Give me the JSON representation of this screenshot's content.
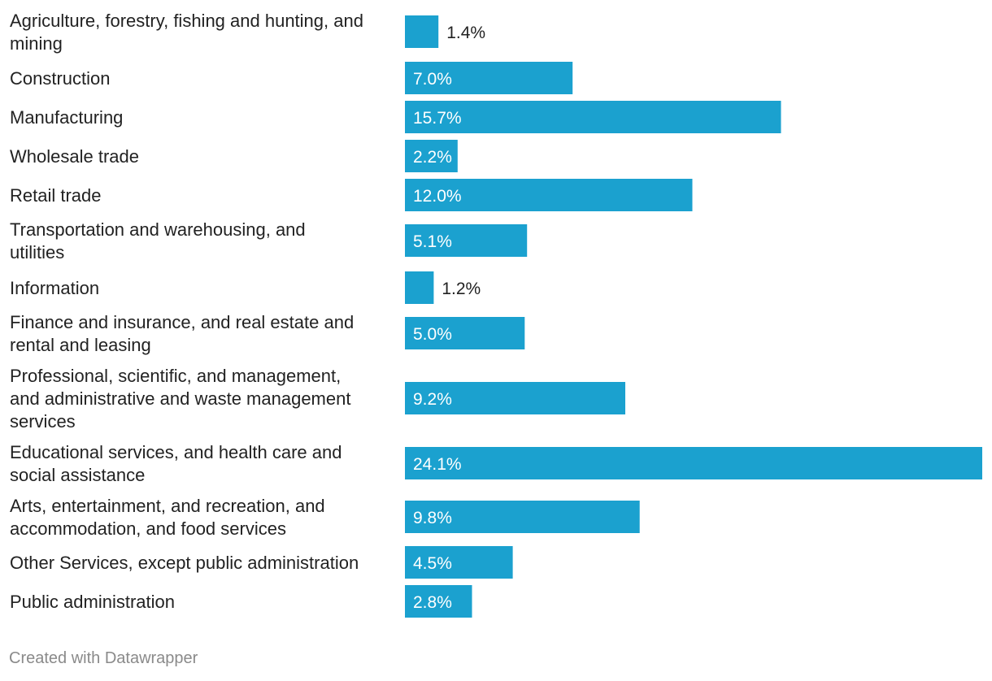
{
  "chart_data": {
    "type": "bar",
    "orientation": "horizontal",
    "categories": [
      "Agriculture, forestry, fishing and hunting, and mining",
      "Construction",
      "Manufacturing",
      "Wholesale trade",
      "Retail trade",
      "Transportation and warehousing, and utilities",
      "Information",
      "Finance and insurance, and real estate and rental and leasing",
      "Professional, scientific, and management, and administrative and waste management services",
      "Educational services, and health care and social assistance",
      "Arts, entertainment, and recreation, and accommodation, and food services",
      "Other Services, except public administration",
      "Public administration"
    ],
    "category_lines": [
      [
        "Agriculture, forestry, fishing and hunting, and",
        "mining"
      ],
      [
        "Construction"
      ],
      [
        "Manufacturing"
      ],
      [
        "Wholesale trade"
      ],
      [
        "Retail trade"
      ],
      [
        "Transportation and warehousing, and",
        "utilities"
      ],
      [
        "Information"
      ],
      [
        "Finance and insurance, and real estate and",
        "rental and leasing"
      ],
      [
        "Professional, scientific, and management,",
        "and administrative and waste management",
        "services"
      ],
      [
        "Educational services, and health care and",
        "social assistance"
      ],
      [
        "Arts, entertainment, and recreation, and",
        "accommodation, and food services"
      ],
      [
        "Other Services, except public administration"
      ],
      [
        "Public administration"
      ]
    ],
    "values": [
      1.4,
      7.0,
      15.7,
      2.2,
      12.0,
      5.1,
      1.2,
      5.0,
      9.2,
      24.1,
      9.8,
      4.5,
      2.8
    ],
    "value_labels": [
      "1.4%",
      "7.0%",
      "15.7%",
      "2.2%",
      "12.0%",
      "5.1%",
      "1.2%",
      "5.0%",
      "9.2%",
      "24.1%",
      "9.8%",
      "4.5%",
      "2.8%"
    ],
    "title": "",
    "xlabel": "",
    "ylabel": "",
    "xlim": [
      0,
      24.1
    ],
    "grid": false,
    "legend": "none",
    "bar_color": "#1ba1cf"
  },
  "footer": {
    "credit": "Created with Datawrapper"
  }
}
